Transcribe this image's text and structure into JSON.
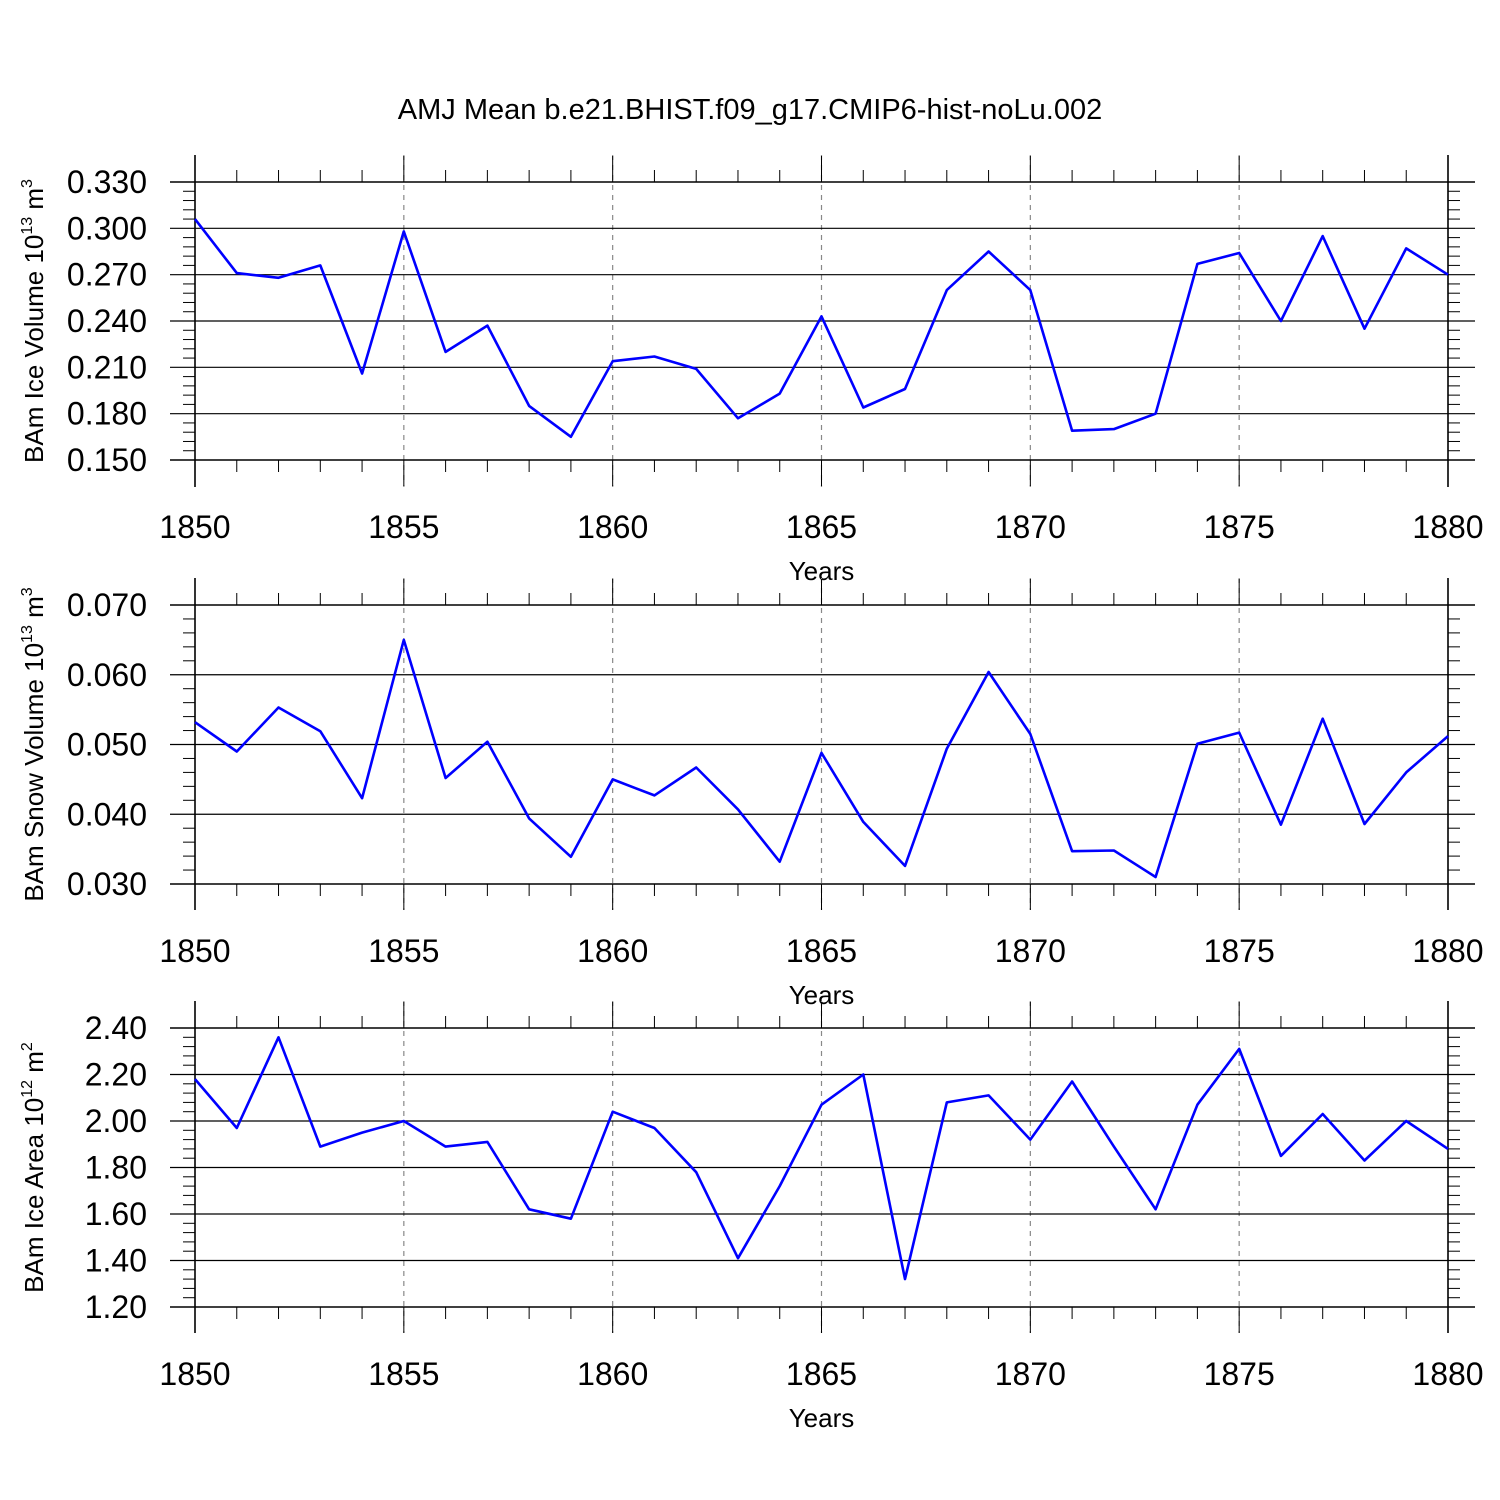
{
  "figure_title": "AMJ Mean b.e21.BHIST.f09_g17.CMIP6-hist-noLu.002",
  "colors": {
    "line": "#0000ff",
    "axis": "#000000",
    "grid": "#888888",
    "background": "#ffffff"
  },
  "chart_data": [
    {
      "type": "line",
      "title": "AMJ Mean b.e21.BHIST.f09_g17.CMIP6-hist-noLu.002",
      "xlabel": "Years",
      "ylabel": "BAm Ice Volume 10",
      "ylabel_exp": "13",
      "ylabel_unit": " m",
      "ylabel_unit_exp": "3",
      "xlim": [
        1850,
        1880
      ],
      "ylim": [
        0.15,
        0.33
      ],
      "x_ticks": [
        "1850",
        "1855",
        "1860",
        "1865",
        "1870",
        "1875",
        "1880"
      ],
      "y_ticks": [
        "0.150",
        "0.180",
        "0.210",
        "0.240",
        "0.270",
        "0.300",
        "0.330"
      ],
      "grid": "vertical dashed at major x ticks",
      "series": [
        {
          "name": "BAm Ice Volume",
          "x": [
            1850,
            1851,
            1852,
            1853,
            1854,
            1855,
            1856,
            1857,
            1858,
            1859,
            1860,
            1861,
            1862,
            1863,
            1864,
            1865,
            1866,
            1867,
            1868,
            1869,
            1870,
            1871,
            1872,
            1873,
            1874,
            1875,
            1876,
            1877,
            1878,
            1879,
            1880
          ],
          "values": [
            0.306,
            0.271,
            0.268,
            0.276,
            0.206,
            0.298,
            0.22,
            0.237,
            0.185,
            0.165,
            0.214,
            0.217,
            0.209,
            0.177,
            0.193,
            0.243,
            0.184,
            0.196,
            0.26,
            0.285,
            0.26,
            0.169,
            0.17,
            0.18,
            0.277,
            0.284,
            0.24,
            0.295,
            0.235,
            0.287,
            0.27
          ]
        }
      ]
    },
    {
      "type": "line",
      "xlabel": "Years",
      "ylabel": "BAm Snow Volume 10",
      "ylabel_exp": "13",
      "ylabel_unit": " m",
      "ylabel_unit_exp": "3",
      "xlim": [
        1850,
        1880
      ],
      "ylim": [
        0.03,
        0.07
      ],
      "x_ticks": [
        "1850",
        "1855",
        "1860",
        "1865",
        "1870",
        "1875",
        "1880"
      ],
      "y_ticks": [
        "0.030",
        "0.040",
        "0.050",
        "0.060",
        "0.070"
      ],
      "grid": "vertical dashed at major x ticks",
      "series": [
        {
          "name": "BAm Snow Volume",
          "x": [
            1850,
            1851,
            1852,
            1853,
            1854,
            1855,
            1856,
            1857,
            1858,
            1859,
            1860,
            1861,
            1862,
            1863,
            1864,
            1865,
            1866,
            1867,
            1868,
            1869,
            1870,
            1871,
            1872,
            1873,
            1874,
            1875,
            1876,
            1877,
            1878,
            1879,
            1880
          ],
          "values": [
            0.0532,
            0.049,
            0.0553,
            0.0519,
            0.0423,
            0.065,
            0.0452,
            0.0504,
            0.0394,
            0.0339,
            0.045,
            0.0427,
            0.0467,
            0.0407,
            0.0332,
            0.0488,
            0.0389,
            0.0326,
            0.0494,
            0.0604,
            0.0515,
            0.0347,
            0.0348,
            0.031,
            0.0501,
            0.0517,
            0.0385,
            0.0537,
            0.0386,
            0.046,
            0.0512
          ]
        }
      ]
    },
    {
      "type": "line",
      "xlabel": "Years",
      "ylabel": "BAm Ice Area 10",
      "ylabel_exp": "12",
      "ylabel_unit": " m",
      "ylabel_unit_exp": "2",
      "xlim": [
        1850,
        1880
      ],
      "ylim": [
        1.2,
        2.4
      ],
      "x_ticks": [
        "1850",
        "1855",
        "1860",
        "1865",
        "1870",
        "1875",
        "1880"
      ],
      "y_ticks": [
        "1.20",
        "1.40",
        "1.60",
        "1.80",
        "2.00",
        "2.20",
        "2.40"
      ],
      "grid": "vertical dashed at major x ticks",
      "series": [
        {
          "name": "BAm Ice Area",
          "x": [
            1850,
            1851,
            1852,
            1853,
            1854,
            1855,
            1856,
            1857,
            1858,
            1859,
            1860,
            1861,
            1862,
            1863,
            1864,
            1865,
            1866,
            1867,
            1868,
            1869,
            1870,
            1871,
            1872,
            1873,
            1874,
            1875,
            1876,
            1877,
            1878,
            1879,
            1880
          ],
          "values": [
            2.18,
            1.97,
            2.36,
            1.89,
            1.95,
            2.0,
            1.89,
            1.91,
            1.62,
            1.58,
            2.04,
            1.97,
            1.78,
            1.41,
            1.72,
            2.07,
            2.2,
            1.32,
            2.08,
            2.11,
            1.92,
            2.17,
            1.89,
            1.62,
            2.07,
            2.31,
            1.85,
            2.03,
            1.83,
            2.0,
            1.88
          ]
        }
      ]
    }
  ]
}
